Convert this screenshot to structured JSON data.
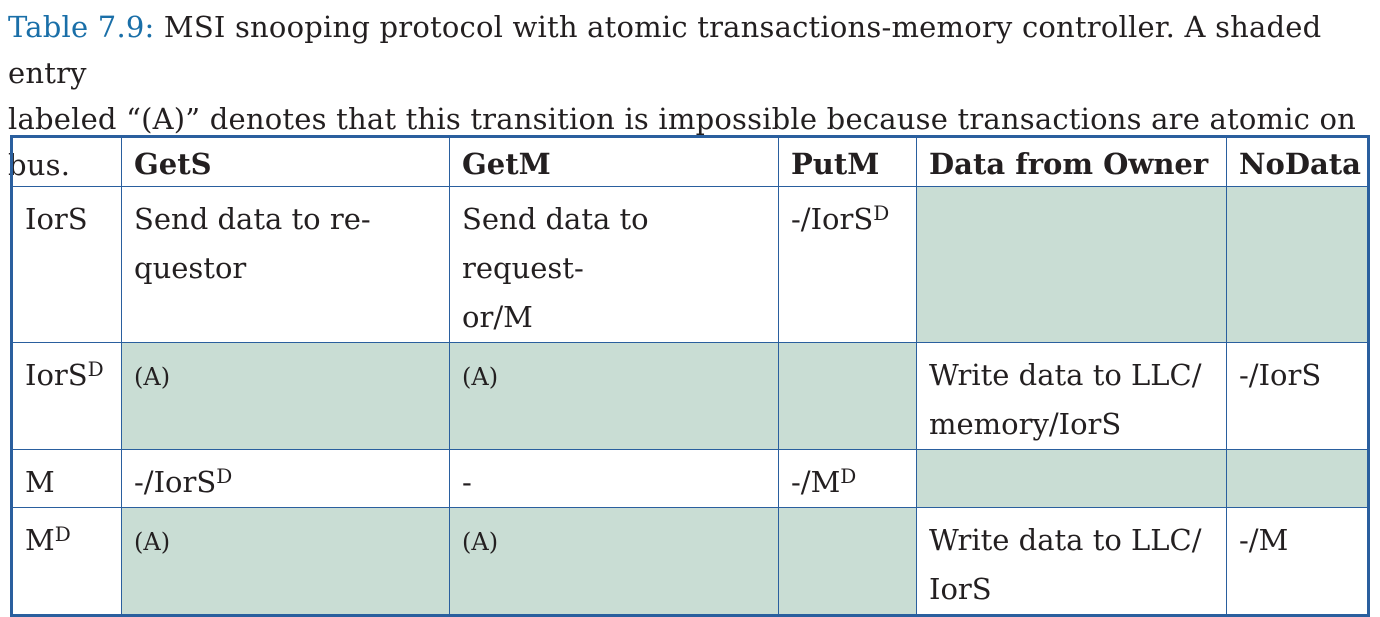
{
  "caption": {
    "label": "Table 7.9:",
    "line1": "MSI snooping protocol with atomic transactions-memory controller. A shaded entry",
    "line2": "labeled “(A)” denotes that this transition is impossible because transactions are atomic on bus."
  },
  "table": {
    "headers": [
      "GetS",
      "GetM",
      "PutM",
      "Data from Owner",
      "NoData"
    ],
    "rows": [
      {
        "state": "IorS",
        "state_sup": "",
        "cells": [
          {
            "line1": "Send data to re-",
            "line2": "questor",
            "sup": "",
            "shaded": false
          },
          {
            "line1": "Send data to request-",
            "line2": "or/M",
            "sup": "",
            "shaded": false
          },
          {
            "line1": "-/IorS",
            "line2": "",
            "sup": "D",
            "shaded": false
          },
          {
            "line1": "",
            "line2": "",
            "sup": "",
            "shaded": true
          },
          {
            "line1": "",
            "line2": "",
            "sup": "",
            "shaded": true
          }
        ]
      },
      {
        "state": "IorS",
        "state_sup": "D",
        "cells": [
          {
            "line1": "(A)",
            "line2": "",
            "sup": "",
            "shaded": true
          },
          {
            "line1": "(A)",
            "line2": "",
            "sup": "",
            "shaded": true
          },
          {
            "line1": "",
            "line2": "",
            "sup": "",
            "shaded": true
          },
          {
            "line1": "Write data to LLC/",
            "line2": "memory/IorS",
            "sup": "",
            "shaded": false
          },
          {
            "line1": "-/IorS",
            "line2": "",
            "sup": "",
            "shaded": false
          }
        ]
      },
      {
        "state": "M",
        "state_sup": "",
        "cells": [
          {
            "line1": "-/IorS",
            "line2": "",
            "sup": "D",
            "shaded": false
          },
          {
            "line1": "-",
            "line2": "",
            "sup": "",
            "shaded": false
          },
          {
            "line1": "-/M",
            "line2": "",
            "sup": "D",
            "shaded": false
          },
          {
            "line1": "",
            "line2": "",
            "sup": "",
            "shaded": true
          },
          {
            "line1": "",
            "line2": "",
            "sup": "",
            "shaded": true
          }
        ]
      },
      {
        "state": "M",
        "state_sup": "D",
        "cells": [
          {
            "line1": "(A)",
            "line2": "",
            "sup": "",
            "shaded": true
          },
          {
            "line1": "(A)",
            "line2": "",
            "sup": "",
            "shaded": true
          },
          {
            "line1": "",
            "line2": "",
            "sup": "",
            "shaded": true
          },
          {
            "line1": "Write data to LLC/",
            "line2": "IorS",
            "sup": "",
            "shaded": false
          },
          {
            "line1": "-/M",
            "line2": "",
            "sup": "",
            "shaded": false
          }
        ]
      }
    ]
  },
  "colors": {
    "border": "#2a5f9e",
    "shade": "#c9ddd4",
    "caption_label": "#1a6fa8"
  }
}
